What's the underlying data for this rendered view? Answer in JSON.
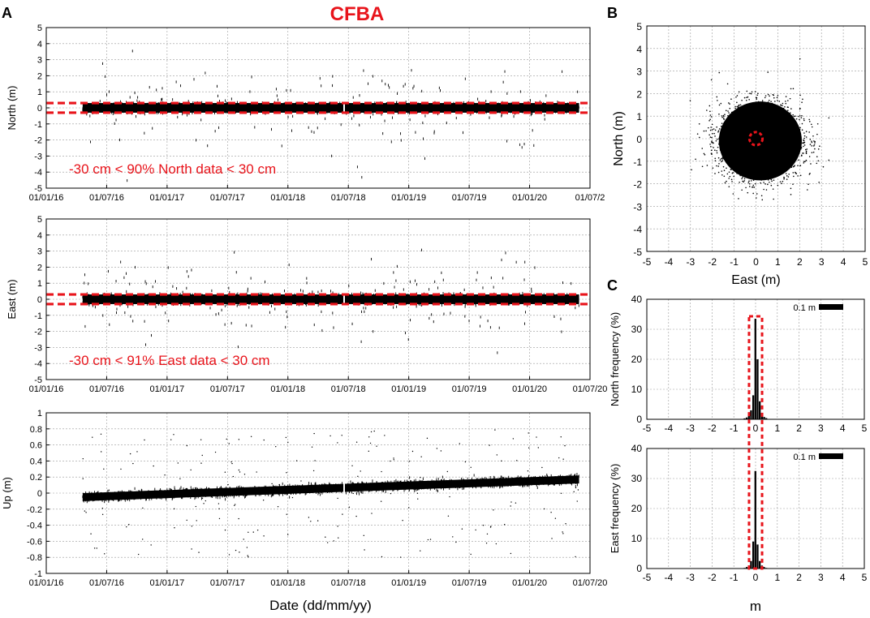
{
  "figure": {
    "title": "CFBA",
    "title_color": "#e8141b",
    "panel_labels": [
      "A",
      "B",
      "C"
    ],
    "date_axis_label": "Date (dd/mm/yy)",
    "mark_color": "#e8141b",
    "data_color": "#000000",
    "grid_color": "#9a9a9a"
  },
  "chart_data": [
    {
      "id": "north-ts",
      "type": "scatter",
      "ylabel": "North (m)",
      "ylim": [
        -5,
        5
      ],
      "yticks": [
        -5,
        -4,
        -3,
        -2,
        -1,
        0,
        1,
        2,
        3,
        4,
        5
      ],
      "xlim_days": [
        0,
        1643
      ],
      "xtick_labels": [
        "01/01/16",
        "01/07/16",
        "01/01/17",
        "01/07/17",
        "01/01/18",
        "01/07/18",
        "01/01/19",
        "01/07/19",
        "01/01/20",
        "01/07/2"
      ],
      "data_start_day": 110,
      "data_end_day": 1610,
      "gap_day": 900,
      "typical_spread_m": 0.3,
      "threshold_m": [
        -0.3,
        0.3
      ],
      "annotation": "-30 cm < 90% North data < 30 cm"
    },
    {
      "id": "east-ts",
      "type": "scatter",
      "ylabel": "East (m)",
      "ylim": [
        -5,
        5
      ],
      "yticks": [
        -5,
        -4,
        -3,
        -2,
        -1,
        0,
        1,
        2,
        3,
        4,
        5
      ],
      "xlim_days": [
        0,
        1643
      ],
      "xtick_labels": [
        "01/01/16",
        "01/07/16",
        "01/01/17",
        "01/07/17",
        "01/01/18",
        "01/07/18",
        "01/01/19",
        "01/07/19",
        "01/01/20",
        "01/07/20"
      ],
      "data_start_day": 110,
      "data_end_day": 1610,
      "gap_day": 900,
      "typical_spread_m": 0.3,
      "threshold_m": [
        -0.3,
        0.3
      ],
      "annotation": "-30 cm < 91% East data < 30 cm"
    },
    {
      "id": "up-ts",
      "type": "scatter",
      "ylabel": "Up (m)",
      "ylim": [
        -1,
        1
      ],
      "yticks": [
        -1,
        -0.8,
        -0.6,
        -0.4,
        -0.2,
        0,
        0.2,
        0.4,
        0.6,
        0.8,
        1
      ],
      "ytick_labels": [
        "-1",
        "-0.8",
        "-0.6",
        "-0.4",
        "-0.2",
        "0",
        "0.2",
        "0.4",
        "0.6",
        "0.8",
        "1"
      ],
      "xlim_days": [
        0,
        1643
      ],
      "xtick_labels": [
        "01/01/16",
        "01/07/16",
        "01/01/17",
        "01/07/17",
        "01/01/18",
        "01/07/18",
        "01/01/19",
        "01/07/19",
        "01/01/20",
        "01/07/20"
      ],
      "data_start_day": 110,
      "data_end_day": 1610,
      "gap_day": 900,
      "trend_m": [
        -0.05,
        0.17
      ],
      "band_halfwidth_m": 0.05
    },
    {
      "id": "scatter-en",
      "type": "scatter",
      "xlabel": "East (m)",
      "ylabel": "North (m)",
      "xlim": [
        -5,
        5
      ],
      "ylim": [
        -5,
        5
      ],
      "ticks": [
        -5,
        -4,
        -3,
        -2,
        -1,
        0,
        1,
        2,
        3,
        4,
        5
      ],
      "center": [
        0.2,
        -0.1
      ],
      "circle_radius_m": 0.3
    },
    {
      "id": "hist-north",
      "type": "bar",
      "ylabel": "North frequency (%)",
      "xlim": [
        -5,
        5
      ],
      "ylim": [
        0,
        40
      ],
      "xticks": [
        -5,
        -4,
        -3,
        -2,
        -1,
        0,
        1,
        2,
        3,
        4,
        5
      ],
      "yticks": [
        0,
        10,
        20,
        30,
        40
      ],
      "bin_width_m": 0.1,
      "legend": "0.1 m",
      "bins": [
        {
          "x": -0.5,
          "value": 0.3
        },
        {
          "x": -0.4,
          "value": 0.6
        },
        {
          "x": -0.3,
          "value": 1.1
        },
        {
          "x": -0.2,
          "value": 3.0
        },
        {
          "x": -0.1,
          "value": 8.0
        },
        {
          "x": 0.0,
          "value": 33.5
        },
        {
          "x": 0.1,
          "value": 20.0
        },
        {
          "x": 0.2,
          "value": 6.0
        },
        {
          "x": 0.3,
          "value": 2.0
        },
        {
          "x": 0.4,
          "value": 0.8
        },
        {
          "x": 0.5,
          "value": 0.4
        }
      ],
      "threshold_m": [
        -0.3,
        0.3
      ]
    },
    {
      "id": "hist-east",
      "type": "bar",
      "ylabel": "East frequency (%)",
      "xlabel": "m",
      "xlim": [
        -5,
        5
      ],
      "ylim": [
        0,
        40
      ],
      "xticks": [
        -5,
        -4,
        -3,
        -2,
        -1,
        0,
        1,
        2,
        3,
        4,
        5
      ],
      "yticks": [
        0,
        10,
        20,
        30,
        40
      ],
      "bin_width_m": 0.1,
      "legend": "0.1 m",
      "bins": [
        {
          "x": -0.5,
          "value": 0.2
        },
        {
          "x": -0.4,
          "value": 0.5
        },
        {
          "x": -0.3,
          "value": 1.0
        },
        {
          "x": -0.2,
          "value": 2.5
        },
        {
          "x": -0.1,
          "value": 9.0
        },
        {
          "x": 0.0,
          "value": 32.5
        },
        {
          "x": 0.1,
          "value": 8.0
        },
        {
          "x": 0.2,
          "value": 2.5
        },
        {
          "x": 0.3,
          "value": 1.0
        },
        {
          "x": 0.4,
          "value": 0.5
        },
        {
          "x": 0.5,
          "value": 0.2
        }
      ],
      "threshold_m": [
        -0.3,
        0.3
      ]
    }
  ]
}
